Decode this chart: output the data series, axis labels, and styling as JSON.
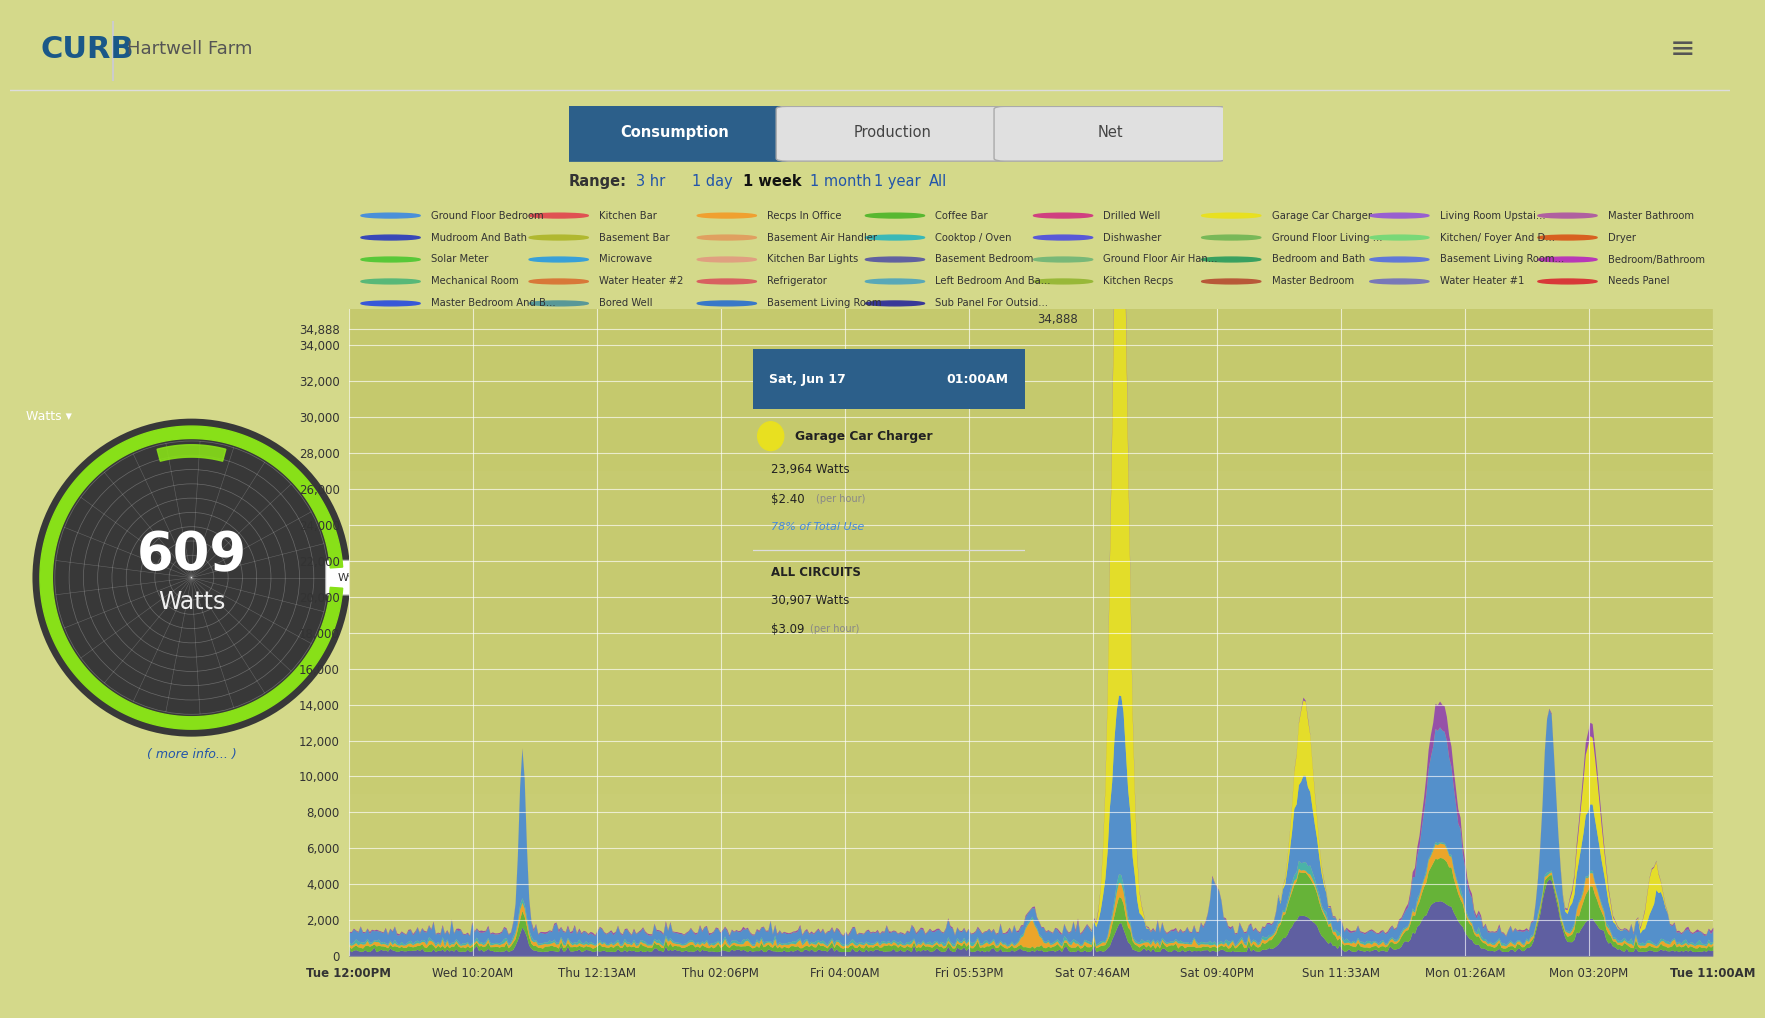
{
  "title": "Hartwell Farm",
  "tab_active": "Consumption",
  "tabs": [
    "Consumption",
    "Production",
    "Net"
  ],
  "range_label": "Range:",
  "ranges": [
    "3 hr",
    "1 day",
    "1 week",
    "1 month",
    "1 year",
    "All"
  ],
  "range_active": "1 week",
  "center_value": "609",
  "center_unit": "Watts",
  "bg_color": "#c8cc78",
  "bg_top": "#d4d98a",
  "bg_bottom": "#b8bc60",
  "chart_bg": "#c8cc70",
  "header_bg": "#ffffff",
  "tab_active_bg": "#2c5f8a",
  "tab_active_fg": "#ffffff",
  "tab_inactive_fg": "#555555",
  "ytick_vals": [
    0,
    2000,
    4000,
    6000,
    8000,
    10000,
    12000,
    14000,
    16000,
    18000,
    20000,
    22000,
    24000,
    26000,
    28000,
    30000,
    32000,
    34000,
    34888
  ],
  "ytick_labels": [
    "0",
    "2,000",
    "4,000",
    "6,000",
    "8,000",
    "10,000",
    "12,000",
    "14,000",
    "16,000",
    "18,000",
    "20,000",
    "22,000",
    "24,000",
    "26,000",
    "28,000",
    "30,000",
    "32,000",
    "34,000",
    "34,888"
  ],
  "xtick_labels": [
    "Tue 12:00PM",
    "Wed 10:20AM",
    "Thu 12:13AM",
    "Thu 02:06PM",
    "Fri 04:00AM",
    "Fri 05:53PM",
    "Sat 07:46AM",
    "Sat 09:40PM",
    "Sun 11:33AM",
    "Mon 01:26AM",
    "Mon 03:20PM",
    "Tue 11:00AM"
  ],
  "ymax": 36000,
  "legend_items": [
    {
      "label": "Ground Floor Bedroom",
      "color": "#4a90d9"
    },
    {
      "label": "Kitchen Bar",
      "color": "#e05252"
    },
    {
      "label": "Recps In Office",
      "color": "#f0a030"
    },
    {
      "label": "Coffee Bar",
      "color": "#58b830"
    },
    {
      "label": "Drilled Well",
      "color": "#d04080"
    },
    {
      "label": "Garage Car Charger",
      "color": "#e8e020"
    },
    {
      "label": "Living Room Upstai...",
      "color": "#9860d0"
    },
    {
      "label": "Master Bathroom",
      "color": "#b060a0"
    },
    {
      "label": "Mudroom And Bath",
      "color": "#3848b8"
    },
    {
      "label": "Basement Bar",
      "color": "#b0b830"
    },
    {
      "label": "Basement Air Handler",
      "color": "#e0a060"
    },
    {
      "label": "Cooktop / Oven",
      "color": "#38b8b8"
    },
    {
      "label": "Dishwasher",
      "color": "#5858d8"
    },
    {
      "label": "Ground Floor Living ...",
      "color": "#78b858"
    },
    {
      "label": "Kitchen/ Foyer And D...",
      "color": "#78d878"
    },
    {
      "label": "Dryer",
      "color": "#d86020"
    },
    {
      "label": "Solar Meter",
      "color": "#58c838"
    },
    {
      "label": "Microwave",
      "color": "#38a0d8"
    },
    {
      "label": "Kitchen Bar Lights",
      "color": "#e0a080"
    },
    {
      "label": "Basement Bedroom",
      "color": "#6060a0"
    },
    {
      "label": "Ground Floor Air Han...",
      "color": "#78b878"
    },
    {
      "label": "Bedroom and Bath",
      "color": "#38a060"
    },
    {
      "label": "Basement Living Room...",
      "color": "#6078d8"
    },
    {
      "label": "Bedroom/Bathroom",
      "color": "#b838b8"
    },
    {
      "label": "Mechanical Room",
      "color": "#58b878"
    },
    {
      "label": "Water Heater #2",
      "color": "#d87838"
    },
    {
      "label": "Refrigerator",
      "color": "#d86060"
    },
    {
      "label": "Left Bedroom And Ba...",
      "color": "#58a8b8"
    },
    {
      "label": "Kitchen Recps",
      "color": "#98b838"
    },
    {
      "label": "Master Bedroom",
      "color": "#b85838"
    },
    {
      "label": "Water Heater #1",
      "color": "#7878b8"
    },
    {
      "label": "Needs Panel",
      "color": "#d83838"
    },
    {
      "label": "Master Bedroom And B...",
      "color": "#3858d8"
    },
    {
      "label": "Bored Well",
      "color": "#589898"
    },
    {
      "label": "Basement Living Room",
      "color": "#3878c8"
    },
    {
      "label": "Sub Panel For Outsid...",
      "color": "#383898"
    }
  ],
  "tooltip": {
    "date": "Sat, Jun 17",
    "time": "01:00AM",
    "item_label": "Garage Car Charger",
    "item_color": "#e8e020",
    "item_watts": "23,964 Watts",
    "item_cost": "$2.40",
    "item_per_hour": "(per hour)",
    "item_pct": "78% of Total Use",
    "all_label": "ALL CIRCUITS",
    "all_watts": "30,907 Watts",
    "all_cost": "$3.09",
    "all_per_hour": "(per hour)"
  },
  "gauge_dark": "#383838",
  "gauge_green_bright": "#88e018",
  "gauge_green_dark": "#4a9010",
  "curb_blue": "#1a5888",
  "more_info_color": "#2255aa"
}
